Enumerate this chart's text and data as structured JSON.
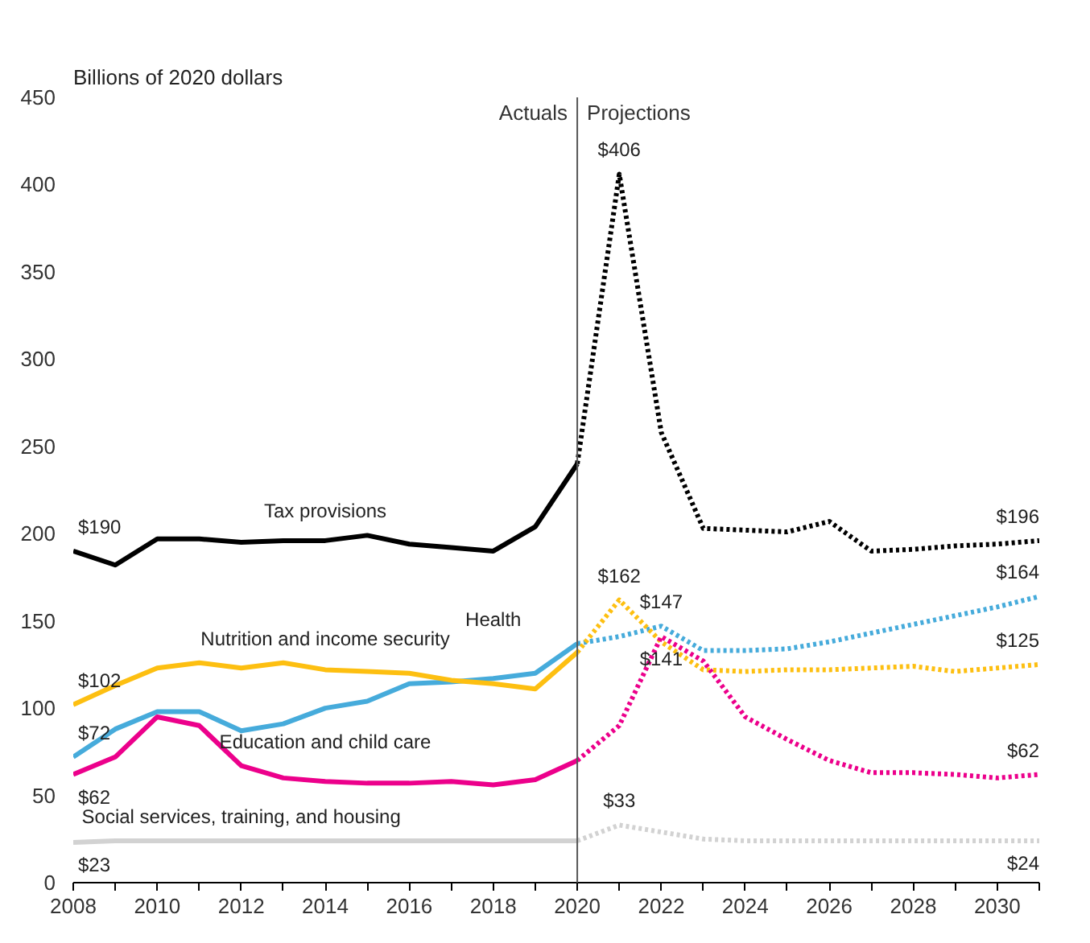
{
  "chart_data": {
    "type": "line",
    "subtitle": "Billions of 2020 dollars",
    "xlim": [
      2008,
      2031
    ],
    "ylim": [
      0,
      450
    ],
    "xticks": [
      2008,
      {
        "value": 2009,
        "label": null
      },
      2010,
      {
        "value": 2011,
        "label": null
      },
      2012,
      {
        "value": 2013,
        "label": null
      },
      2014,
      {
        "value": 2015,
        "label": null
      },
      2016,
      {
        "value": 2017,
        "label": null
      },
      2018,
      {
        "value": 2019,
        "label": null
      },
      2020,
      {
        "value": 2021,
        "label": null
      },
      2022,
      {
        "value": 2023,
        "label": null
      },
      2024,
      {
        "value": 2025,
        "label": null
      },
      2026,
      {
        "value": 2027,
        "label": null
      },
      2028,
      {
        "value": 2029,
        "label": null
      },
      2030,
      {
        "value": 2031,
        "label": null
      }
    ],
    "yticks": [
      0,
      50,
      100,
      150,
      200,
      250,
      300,
      350,
      400,
      450
    ],
    "grid": false,
    "legend": false,
    "marker": "none",
    "series": [
      {
        "name": "Tax provisions",
        "color": "#000000",
        "line_style": "solid",
        "x": [
          2008,
          2009,
          2010,
          2011,
          2012,
          2013,
          2014,
          2015,
          2016,
          2017,
          2018,
          2019,
          2020
        ],
        "values": [
          190,
          182,
          197,
          197,
          195,
          196,
          196,
          199,
          194,
          192,
          190,
          204,
          240
        ]
      },
      {
        "color": "#000000",
        "line_style": "dotted",
        "x": [
          2020,
          2021,
          2022,
          2023,
          2024,
          2025,
          2026,
          2027,
          2028,
          2029,
          2030,
          2031
        ],
        "values": [
          240,
          406,
          258,
          203,
          202,
          201,
          207,
          190,
          191,
          193,
          194,
          196
        ]
      },
      {
        "name": "Health",
        "color": "#46abdb",
        "line_style": "solid",
        "x": [
          2008,
          2009,
          2010,
          2011,
          2012,
          2013,
          2014,
          2015,
          2016,
          2017,
          2018,
          2019,
          2020
        ],
        "values": [
          72,
          88,
          98,
          98,
          87,
          91,
          100,
          104,
          114,
          115,
          117,
          120,
          137
        ]
      },
      {
        "color": "#46abdb",
        "line_style": "dotted",
        "x": [
          2020,
          2021,
          2022,
          2023,
          2024,
          2025,
          2026,
          2027,
          2028,
          2029,
          2030,
          2031
        ],
        "values": [
          137,
          141,
          147,
          133,
          133,
          134,
          138,
          143,
          148,
          153,
          158,
          164
        ]
      },
      {
        "name": "Nutrition and income security",
        "color": "#fdbf11",
        "line_style": "solid",
        "x": [
          2008,
          2009,
          2010,
          2011,
          2012,
          2013,
          2014,
          2015,
          2016,
          2017,
          2018,
          2019,
          2020
        ],
        "values": [
          102,
          113,
          123,
          126,
          123,
          126,
          122,
          121,
          120,
          116,
          114,
          111,
          132
        ]
      },
      {
        "color": "#fdbf11",
        "line_style": "dotted",
        "x": [
          2020,
          2021,
          2022,
          2023,
          2024,
          2025,
          2026,
          2027,
          2028,
          2029,
          2030,
          2031
        ],
        "values": [
          132,
          162,
          138,
          122,
          121,
          122,
          122,
          123,
          124,
          121,
          123,
          125
        ]
      },
      {
        "name": "Education and child care",
        "color": "#ec008b",
        "line_style": "solid",
        "x": [
          2008,
          2009,
          2010,
          2011,
          2012,
          2013,
          2014,
          2015,
          2016,
          2017,
          2018,
          2019,
          2020
        ],
        "values": [
          62,
          72,
          95,
          90,
          67,
          60,
          58,
          57,
          57,
          58,
          56,
          59,
          70
        ]
      },
      {
        "color": "#ec008b",
        "line_style": "dotted",
        "x": [
          2020,
          2021,
          2022,
          2023,
          2024,
          2025,
          2026,
          2027,
          2028,
          2029,
          2030,
          2031
        ],
        "values": [
          70,
          90,
          141,
          127,
          95,
          82,
          70,
          63,
          63,
          62,
          60,
          62
        ]
      },
      {
        "name": "Social services, training, and housing",
        "color": "#d2d2d2",
        "line_style": "solid",
        "x": [
          2008,
          2009,
          2010,
          2011,
          2012,
          2013,
          2014,
          2015,
          2016,
          2017,
          2018,
          2019,
          2020
        ],
        "values": [
          23,
          24,
          24,
          24,
          24,
          24,
          24,
          24,
          24,
          24,
          24,
          24,
          24
        ]
      },
      {
        "color": "#d2d2d2",
        "line_style": "dotted",
        "x": [
          2020,
          2021,
          2022,
          2023,
          2024,
          2025,
          2026,
          2027,
          2028,
          2029,
          2030,
          2031
        ],
        "values": [
          24,
          33,
          29,
          25,
          24,
          24,
          24,
          24,
          24,
          24,
          24,
          24
        ]
      }
    ],
    "ref_lines": [
      {
        "axis": "x",
        "value": 2020,
        "label": "Actuals",
        "color": "#555555",
        "line_style": "solid"
      }
    ],
    "annotations": [
      "Projections",
      {
        "text": "$406",
        "x": 2021,
        "y": 406
      },
      {
        "text": "$190",
        "x": 2008,
        "y": 190
      },
      {
        "text": "$196",
        "x": 2031,
        "y": 196
      },
      {
        "text": "$102",
        "x": 2008,
        "y": 102
      },
      {
        "text": "$72",
        "x": 2008,
        "y": 72
      },
      {
        "text": "$62",
        "x": 2008,
        "y": 62
      },
      {
        "text": "$23",
        "x": 2008,
        "y": 23
      },
      {
        "text": "$162",
        "x": 2021,
        "y": 162
      },
      {
        "text": "$147",
        "x": 2022,
        "y": 147
      },
      {
        "text": "$141",
        "x": 2022,
        "y": 141
      },
      {
        "text": "$33",
        "x": 2021,
        "y": 33
      },
      {
        "text": "$164",
        "x": 2031,
        "y": 164
      },
      {
        "text": "$125",
        "x": 2031,
        "y": 125
      },
      {
        "text": "$62",
        "x": 2031,
        "y": 62
      },
      {
        "text": "$24",
        "x": 2031,
        "y": 24
      }
    ]
  }
}
